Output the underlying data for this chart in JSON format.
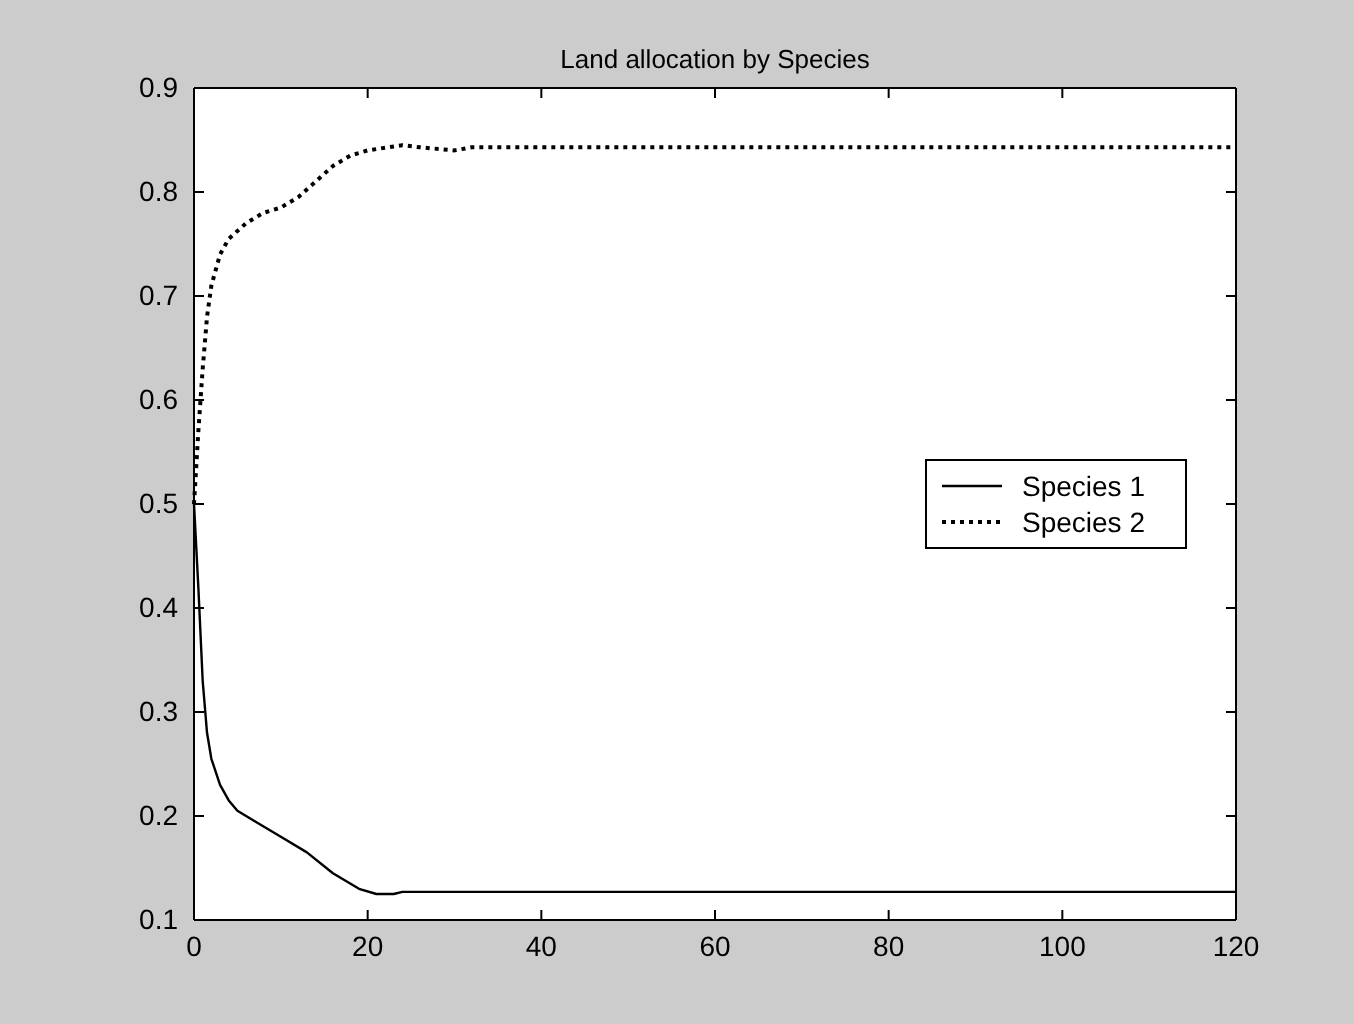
{
  "chart_data": {
    "type": "line",
    "title": "Land allocation by Species",
    "xlim": [
      0,
      120
    ],
    "xticks": [
      0,
      20,
      40,
      60,
      80,
      100,
      120
    ],
    "ylim": [
      0.1,
      0.9
    ],
    "yticks": [
      0.1,
      0.2,
      0.3,
      0.4,
      0.5,
      0.6,
      0.7,
      0.8,
      0.9
    ],
    "grid": false,
    "legend": "right",
    "series": [
      {
        "name": "Species 1",
        "color": "#000000",
        "line_style": "solid",
        "x": [
          0,
          0.5,
          1,
          1.5,
          2,
          3,
          4,
          5,
          7,
          10,
          13,
          16,
          19,
          21,
          23,
          24,
          120
        ],
        "values": [
          0.5,
          0.42,
          0.33,
          0.28,
          0.255,
          0.23,
          0.215,
          0.205,
          0.195,
          0.18,
          0.165,
          0.145,
          0.13,
          0.125,
          0.125,
          0.127,
          0.127
        ]
      },
      {
        "name": "Species 2",
        "color": "#000000",
        "line_style": "dotted",
        "x": [
          0,
          0.5,
          1,
          1.5,
          2,
          3,
          4,
          6,
          8,
          10,
          12,
          14,
          16,
          18,
          20,
          24,
          26,
          30,
          32,
          120
        ],
        "values": [
          0.5,
          0.57,
          0.63,
          0.68,
          0.71,
          0.74,
          0.755,
          0.77,
          0.78,
          0.785,
          0.795,
          0.81,
          0.825,
          0.835,
          0.84,
          0.845,
          0.843,
          0.84,
          0.843,
          0.843
        ]
      }
    ]
  }
}
